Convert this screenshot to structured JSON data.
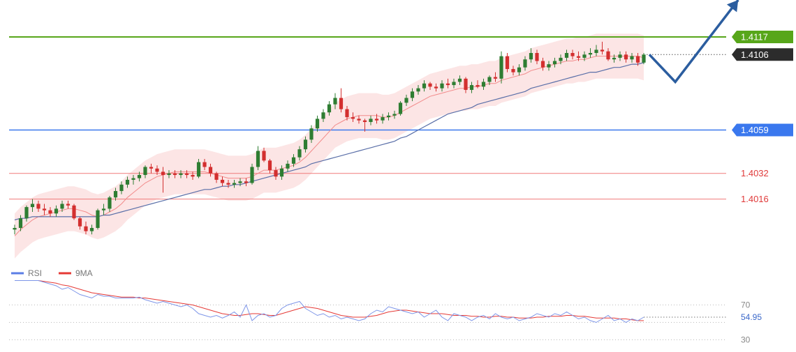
{
  "chart_data": {
    "type": "candlestick",
    "price_axis": {
      "ylim": [
        1.3975,
        1.414
      ]
    },
    "horizontal_levels": [
      {
        "label": "1.4117",
        "value": 1.4117,
        "role": "resistance",
        "color": "#57a61a"
      },
      {
        "label": "1.4059",
        "value": 1.4059,
        "role": "support",
        "color": "#3a78ee"
      },
      {
        "label": "1.4032",
        "value": 1.4032,
        "role": "support",
        "color": "#f07a7a"
      },
      {
        "label": "1.4016",
        "value": 1.4016,
        "role": "support",
        "color": "#f07a7a"
      }
    ],
    "current_price": {
      "label": "1.4106",
      "value": 1.4106
    },
    "candles": [
      [
        1.3997,
        1.4,
        1.3994,
        1.3998
      ],
      [
        1.3998,
        1.4006,
        1.3996,
        1.4004
      ],
      [
        1.4004,
        1.4012,
        1.4002,
        1.4011
      ],
      [
        1.4011,
        1.4016,
        1.4008,
        1.4013
      ],
      [
        1.4013,
        1.4015,
        1.4008,
        1.401
      ],
      [
        1.401,
        1.4013,
        1.4006,
        1.4009
      ],
      [
        1.4009,
        1.4011,
        1.4005,
        1.4007
      ],
      [
        1.4007,
        1.4012,
        1.4005,
        1.401
      ],
      [
        1.401,
        1.4015,
        1.4008,
        1.4013
      ],
      [
        1.4013,
        1.4015,
        1.401,
        1.4012
      ],
      [
        1.4012,
        1.4013,
        1.4003,
        1.4004
      ],
      [
        1.4004,
        1.4005,
        1.3997,
        1.3999
      ],
      [
        1.3999,
        1.4002,
        1.3994,
        1.3996
      ],
      [
        1.3996,
        1.4,
        1.3994,
        1.3998
      ],
      [
        1.3998,
        1.401,
        1.3997,
        1.4009
      ],
      [
        1.4009,
        1.4013,
        1.4006,
        1.401
      ],
      [
        1.401,
        1.4018,
        1.4008,
        1.4017
      ],
      [
        1.4017,
        1.4023,
        1.4015,
        1.4021
      ],
      [
        1.4021,
        1.4027,
        1.4019,
        1.4025
      ],
      [
        1.4025,
        1.403,
        1.4023,
        1.4028
      ],
      [
        1.4028,
        1.4031,
        1.4025,
        1.4029
      ],
      [
        1.4029,
        1.4033,
        1.4027,
        1.4031
      ],
      [
        1.4031,
        1.4037,
        1.4029,
        1.4036
      ],
      [
        1.4036,
        1.4038,
        1.4032,
        1.4035
      ],
      [
        1.4035,
        1.4037,
        1.4031,
        1.4033
      ],
      [
        1.4033,
        1.4036,
        1.402,
        1.4031
      ],
      [
        1.4031,
        1.4034,
        1.4029,
        1.4032
      ],
      [
        1.4032,
        1.4034,
        1.4029,
        1.4031
      ],
      [
        1.4031,
        1.4034,
        1.4029,
        1.4032
      ],
      [
        1.4032,
        1.4034,
        1.4029,
        1.4031
      ],
      [
        1.4031,
        1.4033,
        1.4028,
        1.403
      ],
      [
        1.403,
        1.4041,
        1.4029,
        1.4039
      ],
      [
        1.4039,
        1.4041,
        1.4034,
        1.4036
      ],
      [
        1.4036,
        1.4038,
        1.403,
        1.4032
      ],
      [
        1.4032,
        1.4033,
        1.4026,
        1.4028
      ],
      [
        1.4028,
        1.403,
        1.4024,
        1.4026
      ],
      [
        1.4026,
        1.4028,
        1.4023,
        1.4025
      ],
      [
        1.4025,
        1.4028,
        1.4023,
        1.4026
      ],
      [
        1.4026,
        1.4029,
        1.4024,
        1.4027
      ],
      [
        1.4027,
        1.4029,
        1.4024,
        1.4026
      ],
      [
        1.4026,
        1.4038,
        1.4025,
        1.4036
      ],
      [
        1.4036,
        1.4049,
        1.4034,
        1.4046
      ],
      [
        1.4046,
        1.4048,
        1.4039,
        1.404
      ],
      [
        1.404,
        1.4041,
        1.4032,
        1.4034
      ],
      [
        1.4034,
        1.4036,
        1.4028,
        1.403
      ],
      [
        1.403,
        1.4037,
        1.4028,
        1.4035
      ],
      [
        1.4035,
        1.404,
        1.4033,
        1.4038
      ],
      [
        1.4038,
        1.4044,
        1.4036,
        1.4042
      ],
      [
        1.4042,
        1.4049,
        1.404,
        1.4047
      ],
      [
        1.4047,
        1.4055,
        1.4045,
        1.4053
      ],
      [
        1.4053,
        1.4062,
        1.4051,
        1.406
      ],
      [
        1.406,
        1.4068,
        1.4058,
        1.4066
      ],
      [
        1.4066,
        1.4072,
        1.4064,
        1.407
      ],
      [
        1.407,
        1.4077,
        1.4068,
        1.4075
      ],
      [
        1.4075,
        1.4082,
        1.4072,
        1.4079
      ],
      [
        1.4079,
        1.4085,
        1.407,
        1.4072
      ],
      [
        1.4072,
        1.4074,
        1.4065,
        1.4067
      ],
      [
        1.4067,
        1.407,
        1.4064,
        1.4066
      ],
      [
        1.4066,
        1.4068,
        1.4063,
        1.4065
      ],
      [
        1.4065,
        1.4066,
        1.4058,
        1.4064
      ],
      [
        1.4064,
        1.4068,
        1.4062,
        1.4066
      ],
      [
        1.4066,
        1.4069,
        1.4063,
        1.4065
      ],
      [
        1.4065,
        1.4069,
        1.4063,
        1.4067
      ],
      [
        1.4067,
        1.407,
        1.4065,
        1.4068
      ],
      [
        1.4068,
        1.4071,
        1.4066,
        1.4069
      ],
      [
        1.4069,
        1.4077,
        1.4068,
        1.4076
      ],
      [
        1.4076,
        1.4081,
        1.4074,
        1.4079
      ],
      [
        1.4079,
        1.4085,
        1.4077,
        1.4083
      ],
      [
        1.4083,
        1.4087,
        1.4081,
        1.4085
      ],
      [
        1.4085,
        1.409,
        1.4083,
        1.4088
      ],
      [
        1.4088,
        1.4089,
        1.4084,
        1.4086
      ],
      [
        1.4086,
        1.4088,
        1.4083,
        1.4085
      ],
      [
        1.4085,
        1.409,
        1.4083,
        1.4088
      ],
      [
        1.4088,
        1.4091,
        1.4085,
        1.4087
      ],
      [
        1.4087,
        1.4091,
        1.4085,
        1.4089
      ],
      [
        1.4089,
        1.4093,
        1.4087,
        1.4091
      ],
      [
        1.4091,
        1.4092,
        1.4082,
        1.4084
      ],
      [
        1.4084,
        1.4089,
        1.4082,
        1.4087
      ],
      [
        1.4087,
        1.409,
        1.4085,
        1.4086
      ],
      [
        1.4086,
        1.4091,
        1.4084,
        1.4089
      ],
      [
        1.4089,
        1.4093,
        1.4087,
        1.4092
      ],
      [
        1.4092,
        1.4095,
        1.4089,
        1.4091
      ],
      [
        1.4091,
        1.4108,
        1.4088,
        1.4105
      ],
      [
        1.4105,
        1.4107,
        1.4095,
        1.4097
      ],
      [
        1.4097,
        1.4099,
        1.4093,
        1.4095
      ],
      [
        1.4095,
        1.41,
        1.4093,
        1.4098
      ],
      [
        1.4098,
        1.4105,
        1.4096,
        1.4103
      ],
      [
        1.4103,
        1.411,
        1.4101,
        1.4107
      ],
      [
        1.4107,
        1.4109,
        1.41,
        1.4102
      ],
      [
        1.4102,
        1.4104,
        1.4096,
        1.4098
      ],
      [
        1.4098,
        1.4102,
        1.4096,
        1.41
      ],
      [
        1.41,
        1.4104,
        1.4098,
        1.4102
      ],
      [
        1.4102,
        1.4106,
        1.41,
        1.4104
      ],
      [
        1.4104,
        1.4109,
        1.4102,
        1.4107
      ],
      [
        1.4107,
        1.4109,
        1.4103,
        1.4105
      ],
      [
        1.4105,
        1.4108,
        1.4102,
        1.4104
      ],
      [
        1.4104,
        1.4108,
        1.4102,
        1.4106
      ],
      [
        1.4106,
        1.411,
        1.4104,
        1.4107
      ],
      [
        1.4107,
        1.4112,
        1.4105,
        1.4109
      ],
      [
        1.4109,
        1.4114,
        1.4106,
        1.4108
      ],
      [
        1.4108,
        1.411,
        1.4102,
        1.4103
      ],
      [
        1.4103,
        1.4106,
        1.4101,
        1.4104
      ],
      [
        1.4104,
        1.4108,
        1.4102,
        1.4106
      ],
      [
        1.4106,
        1.4108,
        1.4101,
        1.4103
      ],
      [
        1.4103,
        1.4107,
        1.4101,
        1.4105
      ],
      [
        1.4105,
        1.4107,
        1.4099,
        1.4101
      ],
      [
        1.4101,
        1.4107,
        1.41,
        1.4106
      ]
    ],
    "bollinger_middle_ma": [
      1.3993,
      1.3997,
      1.4,
      1.4003,
      1.4005,
      1.4006,
      1.4007,
      1.4008,
      1.4009,
      1.401,
      1.401,
      1.4009,
      1.4008,
      1.4006,
      1.4005,
      1.4006,
      1.4008,
      1.401,
      1.4013,
      1.4017,
      1.402,
      1.4023,
      1.4026,
      1.4028,
      1.403,
      1.4031,
      1.4032,
      1.4033,
      1.4033,
      1.4033,
      1.4033,
      1.4033,
      1.4033,
      1.4032,
      1.4031,
      1.403,
      1.4029,
      1.4029,
      1.4029,
      1.4029,
      1.403,
      1.4032,
      1.4034,
      1.4034,
      1.4034,
      1.4035,
      1.4036,
      1.4037,
      1.4039,
      1.4042,
      1.4046,
      1.405,
      1.4054,
      1.4058,
      1.4062,
      1.4064,
      1.4066,
      1.4067,
      1.4068,
      1.4068,
      1.4068,
      1.4068,
      1.4067,
      1.4067,
      1.4068,
      1.407,
      1.4072,
      1.4074,
      1.4076,
      1.4078,
      1.408,
      1.4081,
      1.4082,
      1.4083,
      1.4084,
      1.4085,
      1.4085,
      1.4086,
      1.4086,
      1.4087,
      1.4088,
      1.4088,
      1.409,
      1.4091,
      1.4092,
      1.4093,
      1.4094,
      1.4096,
      1.4097,
      1.4098,
      1.4099,
      1.41,
      1.4101,
      1.4102,
      1.4102,
      1.4103,
      1.4103,
      1.4104,
      1.4105,
      1.4105,
      1.4105,
      1.4105,
      1.4105,
      1.4105,
      1.4105,
      1.4105,
      1.4104
    ],
    "bollinger_band_width": 0.0014,
    "slow_ma": [
      1.4003,
      1.4004,
      1.4004,
      1.4005,
      1.4005,
      1.4005,
      1.4005,
      1.4005,
      1.4005,
      1.4005,
      1.4005,
      1.4005,
      1.4005,
      1.4005,
      1.4005,
      1.4006,
      1.4006,
      1.4007,
      1.4008,
      1.4009,
      1.401,
      1.4011,
      1.4012,
      1.4013,
      1.4014,
      1.4015,
      1.4016,
      1.4017,
      1.4018,
      1.4019,
      1.402,
      1.4021,
      1.4022,
      1.4022,
      1.4023,
      1.4024,
      1.4024,
      1.4025,
      1.4025,
      1.4026,
      1.4027,
      1.4028,
      1.4029,
      1.403,
      1.4031,
      1.4032,
      1.4033,
      1.4034,
      1.4035,
      1.4036,
      1.4038,
      1.4039,
      1.404,
      1.4041,
      1.4042,
      1.4043,
      1.4044,
      1.4045,
      1.4046,
      1.4047,
      1.4048,
      1.4049,
      1.405,
      1.4051,
      1.4052,
      1.4054,
      1.4055,
      1.4057,
      1.4059,
      1.4061,
      1.4063,
      1.4065,
      1.4067,
      1.4069,
      1.407,
      1.4071,
      1.4072,
      1.4073,
      1.4075,
      1.4076,
      1.4077,
      1.4078,
      1.4079,
      1.408,
      1.4081,
      1.4082,
      1.4083,
      1.4085,
      1.4086,
      1.4087,
      1.4088,
      1.4089,
      1.409,
      1.4091,
      1.4092,
      1.4093,
      1.4094,
      1.4095,
      1.4095,
      1.4096,
      1.4097,
      1.4098,
      1.4098,
      1.4099,
      1.41,
      1.41,
      1.4101
    ],
    "forecast_path": [
      {
        "step": 0,
        "value": 1.4106
      },
      {
        "step": 7,
        "value": 1.4089
      },
      {
        "step": 24,
        "value": 1.414
      }
    ],
    "rsi_panel": {
      "legend": [
        {
          "label": "RSI",
          "color": "#5b7ee5"
        },
        {
          "label": "9MA",
          "color": "#e53935"
        }
      ],
      "ylim": [
        20,
        100
      ],
      "levels": [
        {
          "label": "70",
          "value": 70
        },
        {
          "label": "30",
          "value": 30
        }
      ],
      "current_value_label": "54.95",
      "rsi": [
        98,
        98,
        98,
        98,
        98,
        96,
        94,
        92,
        88,
        90,
        86,
        82,
        80,
        78,
        82,
        80,
        80,
        78,
        78,
        78,
        78,
        79,
        76,
        74,
        72,
        74,
        72,
        70,
        68,
        70,
        66,
        60,
        58,
        56,
        58,
        55,
        58,
        62,
        56,
        70,
        52,
        58,
        60,
        56,
        58,
        66,
        70,
        72,
        74,
        66,
        62,
        58,
        60,
        56,
        58,
        54,
        56,
        54,
        52,
        54,
        60,
        64,
        62,
        68,
        66,
        64,
        62,
        60,
        62,
        56,
        60,
        64,
        56,
        52,
        60,
        58,
        56,
        52,
        56,
        58,
        54,
        60,
        56,
        54,
        56,
        52,
        54,
        56,
        60,
        58,
        56,
        60,
        58,
        62,
        58,
        54,
        56,
        52,
        50,
        54,
        58,
        52,
        54,
        50,
        54,
        52,
        56
      ],
      "ma9": [
        98,
        98,
        98,
        98,
        98,
        97,
        96,
        95,
        93,
        92,
        90,
        88,
        86,
        84,
        83,
        82,
        81,
        80,
        79,
        79,
        79,
        78,
        78,
        77,
        76,
        75,
        74,
        73,
        72,
        71,
        70,
        68,
        66,
        64,
        62,
        60,
        59,
        58,
        58,
        59,
        60,
        60,
        59,
        58,
        58,
        60,
        62,
        64,
        66,
        68,
        67,
        66,
        64,
        62,
        60,
        58,
        57,
        56,
        56,
        56,
        57,
        58,
        60,
        62,
        63,
        64,
        64,
        63,
        62,
        61,
        60,
        60,
        60,
        59,
        58,
        58,
        58,
        57,
        57,
        56,
        56,
        57,
        57,
        56,
        56,
        55,
        55,
        55,
        56,
        56,
        57,
        57,
        57,
        58,
        58,
        57,
        57,
        56,
        55,
        55,
        55,
        55,
        54,
        54,
        53,
        52,
        52
      ]
    }
  }
}
